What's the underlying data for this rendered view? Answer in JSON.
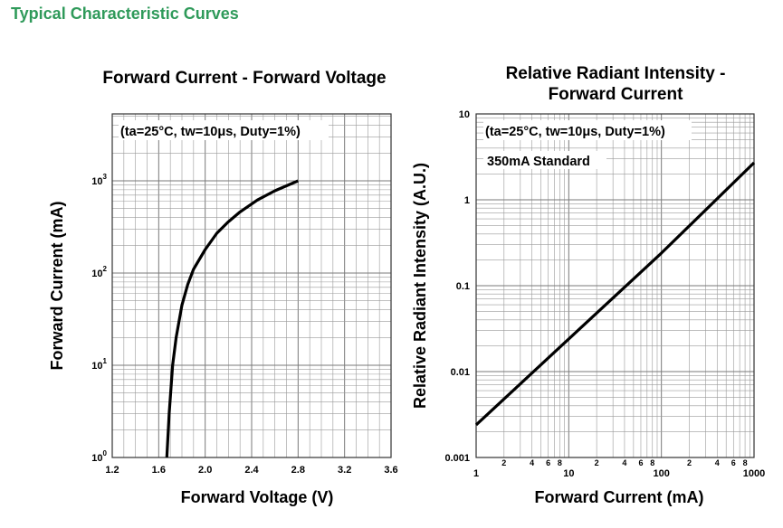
{
  "section_title": "Typical Characteristic Curves",
  "chart_data": [
    {
      "type": "line",
      "title": "Forward Current - Forward Voltage",
      "xlabel": "Forward Voltage (V)",
      "ylabel": "Forward Current (mA)",
      "annotation": "(ta=25°C, tw=10μs, Duty=1%)",
      "x_scale": "linear",
      "y_scale": "log",
      "xlim": [
        1.2,
        3.6
      ],
      "ylim": [
        1,
        5000
      ],
      "x_ticks": [
        "1.2",
        "1.6",
        "2.0",
        "2.4",
        "2.8",
        "3.2",
        "3.6"
      ],
      "y_ticks": [
        {
          "base": "10",
          "exp": "0"
        },
        {
          "base": "10",
          "exp": "1"
        },
        {
          "base": "10",
          "exp": "2"
        },
        {
          "base": "10",
          "exp": "3"
        }
      ],
      "grid": true,
      "series": [
        {
          "x": [
            1.67,
            1.69,
            1.72,
            1.75,
            1.8,
            1.85,
            1.9,
            2.0,
            2.1,
            2.2,
            2.3,
            2.45,
            2.6,
            2.8
          ],
          "y": [
            1,
            3,
            10,
            20,
            45,
            75,
            110,
            180,
            270,
            360,
            460,
            620,
            780,
            1000
          ]
        }
      ]
    },
    {
      "type": "line",
      "title": "Relative Radiant Intensity - Forward Current",
      "xlabel": "Forward Current (mA)",
      "ylabel": "Relative Radiant Intensity (A.U.)",
      "annotation": "(ta=25°C, tw=10μs, Duty=1%)",
      "note": "350mA Standard",
      "x_scale": "log",
      "y_scale": "log",
      "xlim": [
        1,
        1000
      ],
      "ylim": [
        0.001,
        10
      ],
      "x_ticks": [
        "1",
        "10",
        "100",
        "1000"
      ],
      "x_minor_ticks": [
        "2",
        "4",
        "6",
        "8"
      ],
      "y_ticks": [
        "0.001",
        "0.01",
        "0.1",
        "1",
        "10"
      ],
      "grid": true,
      "series": [
        {
          "x": [
            1,
            10,
            100,
            1000
          ],
          "y": [
            0.0024,
            0.024,
            0.24,
            2.7
          ]
        }
      ]
    }
  ]
}
